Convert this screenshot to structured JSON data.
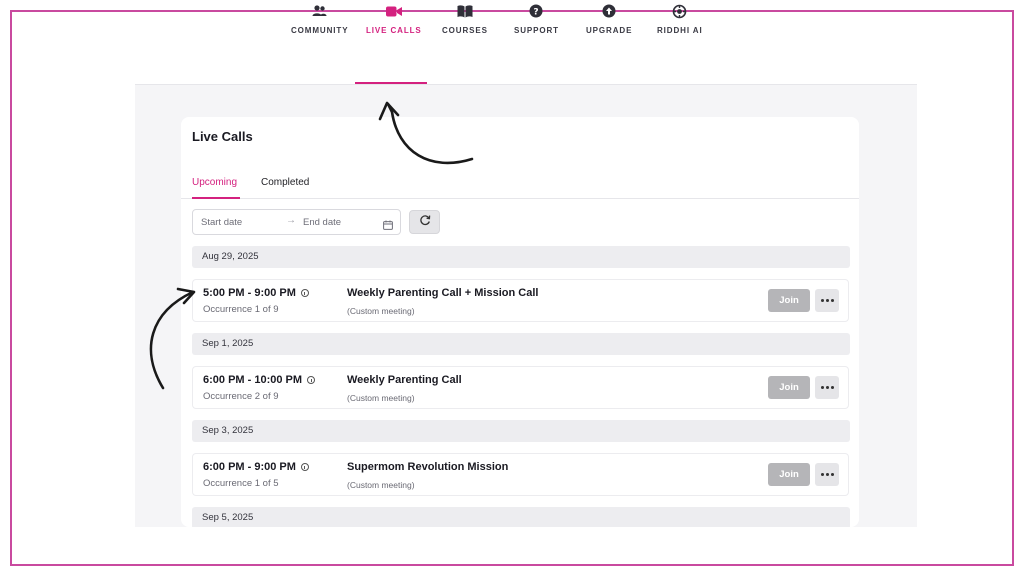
{
  "colors": {
    "accent": "#d4217f",
    "frame": "#c94a9f",
    "join_disabled": "#b5b5b8"
  },
  "nav": {
    "items": [
      {
        "label": "COMMUNITY",
        "icon": "community-icon"
      },
      {
        "label": "LIVE CALLS",
        "icon": "video-camera-icon",
        "active": true
      },
      {
        "label": "COURSES",
        "icon": "book-icon"
      },
      {
        "label": "SUPPORT",
        "icon": "help-circle-icon"
      },
      {
        "label": "UPGRADE",
        "icon": "upgrade-arrow-icon"
      },
      {
        "label": "RIDDHI AI",
        "icon": "ai-sparkle-icon"
      }
    ]
  },
  "page": {
    "title": "Live Calls"
  },
  "tabs": {
    "upcoming": "Upcoming",
    "completed": "Completed",
    "active": "Upcoming"
  },
  "filters": {
    "start_placeholder": "Start date",
    "end_placeholder": "End date",
    "separator": "→"
  },
  "groups": [
    {
      "date": "Aug 29, 2025",
      "calls": [
        {
          "time": "5:00 PM - 9:00 PM",
          "occurrence": "Occurrence 1 of 9",
          "title": "Weekly Parenting Call + Mission Call",
          "subtitle": "(Custom meeting)",
          "join": "Join"
        }
      ]
    },
    {
      "date": "Sep 1, 2025",
      "calls": [
        {
          "time": "6:00 PM - 10:00 PM",
          "occurrence": "Occurrence 2 of 9",
          "title": "Weekly Parenting Call",
          "subtitle": "(Custom meeting)",
          "join": "Join"
        }
      ]
    },
    {
      "date": "Sep 3, 2025",
      "calls": [
        {
          "time": "6:00 PM - 9:00 PM",
          "occurrence": "Occurrence 1 of 5",
          "title": "Supermom Revolution Mission",
          "subtitle": "(Custom meeting)",
          "join": "Join"
        }
      ]
    },
    {
      "date": "Sep 5, 2025",
      "calls": []
    }
  ]
}
